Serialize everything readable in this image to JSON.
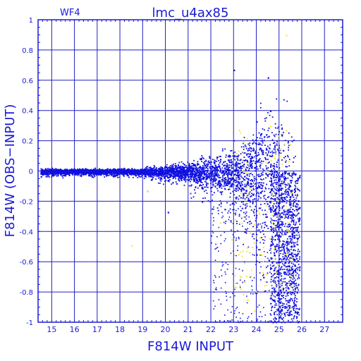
{
  "chart_data": {
    "type": "scatter",
    "title": "lmc_u4ax85",
    "panel_label": "WF4",
    "xlabel": "F814W  INPUT",
    "ylabel": "F814W  (OBS−INPUT)",
    "xlim": [
      14.4,
      27.8
    ],
    "ylim": [
      -1,
      1
    ],
    "xticks": [
      15,
      16,
      17,
      18,
      19,
      20,
      21,
      22,
      23,
      24,
      25,
      26,
      27
    ],
    "yticks": [
      -1,
      -0.8,
      -0.6,
      -0.4,
      -0.2,
      0,
      0.2,
      0.4,
      0.6,
      0.8,
      1
    ],
    "grid": true,
    "colors": {
      "axes": "#1a1ad8",
      "grid": "#2020c0",
      "primary": "#1010e0",
      "secondary": "#f5e642"
    },
    "series": [
      {
        "color": "#1010e0",
        "points": [
          [
            14.6,
            0.0
          ],
          [
            14.9,
            0.01
          ],
          [
            15.2,
            -0.01
          ],
          [
            15.5,
            0.0
          ],
          [
            15.8,
            0.01
          ],
          [
            16.1,
            -0.01
          ],
          [
            16.4,
            0.0
          ],
          [
            16.7,
            0.01
          ],
          [
            17.0,
            -0.01
          ],
          [
            17.3,
            0.0
          ],
          [
            17.6,
            0.01
          ],
          [
            17.9,
            -0.01
          ],
          [
            18.2,
            0.0
          ],
          [
            18.5,
            0.02
          ],
          [
            18.8,
            -0.02
          ],
          [
            19.1,
            0.0
          ],
          [
            19.4,
            0.02
          ],
          [
            19.7,
            -0.02
          ],
          [
            20.0,
            0.01
          ],
          [
            20.3,
            -0.03
          ],
          [
            20.6,
            0.03
          ],
          [
            20.9,
            -0.01
          ],
          [
            21.2,
            0.04
          ],
          [
            21.5,
            -0.04
          ],
          [
            21.8,
            0.05
          ],
          [
            22.1,
            -0.06
          ],
          [
            22.4,
            0.08
          ],
          [
            22.7,
            -0.09
          ],
          [
            23.0,
            0.1
          ],
          [
            23.3,
            -0.12
          ],
          [
            23.6,
            0.14
          ],
          [
            23.9,
            -0.18
          ],
          [
            24.2,
            0.25
          ],
          [
            24.4,
            -0.3
          ],
          [
            24.6,
            0.4
          ],
          [
            24.8,
            -0.45
          ],
          [
            25.0,
            -0.6
          ],
          [
            25.2,
            -0.8
          ],
          [
            25.4,
            -0.95
          ],
          [
            23.0,
            0.67
          ],
          [
            24.5,
            0.62
          ],
          [
            22.6,
            -0.25
          ],
          [
            23.5,
            -0.4
          ],
          [
            24.0,
            -0.55
          ],
          [
            24.3,
            -0.7
          ],
          [
            21.6,
            -0.2
          ],
          [
            20.1,
            -0.27
          ],
          [
            19.2,
            -0.13
          ]
        ]
      },
      {
        "color": "#f5e642",
        "points": [
          [
            18.5,
            -0.49
          ],
          [
            19.2,
            -0.13
          ],
          [
            22.4,
            -0.34
          ],
          [
            23.1,
            0.12
          ],
          [
            23.4,
            -0.3
          ],
          [
            23.8,
            -0.5
          ],
          [
            24.2,
            0.05
          ],
          [
            24.5,
            0.0
          ],
          [
            24.7,
            -0.2
          ],
          [
            24.9,
            -0.1
          ],
          [
            25.0,
            0.1
          ],
          [
            25.2,
            -0.3
          ],
          [
            25.3,
            0.9
          ],
          [
            25.4,
            -0.4
          ],
          [
            23.3,
            -0.7
          ],
          [
            23.6,
            -0.85
          ],
          [
            23.9,
            -0.92
          ],
          [
            24.8,
            -0.75
          ],
          [
            24.6,
            0.3
          ],
          [
            24.4,
            0.2
          ],
          [
            22.9,
            -0.45
          ],
          [
            23.2,
            -0.55
          ],
          [
            25.1,
            0.05
          ],
          [
            25.5,
            -0.9
          ]
        ]
      }
    ]
  }
}
